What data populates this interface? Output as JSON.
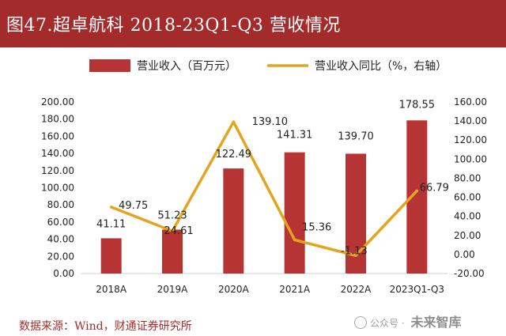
{
  "title": "图47.超卓航科 2018-23Q1-Q3 营收情况",
  "source": "数据来源：Wind，财通证券研究所",
  "watermark": {
    "prefix": "公众号 · ",
    "name": "未来智库"
  },
  "colors": {
    "bar": "#b73434",
    "line": "#e3a51f",
    "title_bg": "#a32b2b"
  },
  "chart_data": {
    "type": "bar",
    "categories": [
      "2018A",
      "2019A",
      "2020A",
      "2021A",
      "2022A",
      "2023Q1-Q3"
    ],
    "series": [
      {
        "name": "营业收入（百万元）",
        "type": "bar",
        "axis": "left",
        "values": [
          41.11,
          51.23,
          122.49,
          141.31,
          139.7,
          178.55
        ],
        "labels": [
          "41.11",
          "51.23",
          "122.49",
          "141.31",
          "139.70",
          "178.55"
        ]
      },
      {
        "name": "营业收入同比（%，右轴）",
        "type": "line",
        "axis": "right",
        "values": [
          49.75,
          24.61,
          139.1,
          15.36,
          -1.13,
          66.79
        ],
        "labels": [
          "49.75",
          "24.61",
          "139.10",
          "15.36",
          "-1.13",
          "66.79"
        ]
      }
    ],
    "y_left": {
      "range": [
        0,
        200
      ],
      "ticks": [
        "0.00",
        "20.00",
        "40.00",
        "60.00",
        "80.00",
        "100.00",
        "120.00",
        "140.00",
        "160.00",
        "180.00",
        "200.00"
      ]
    },
    "y_right": {
      "range": [
        -20,
        160
      ],
      "ticks": [
        "-20.00",
        "0.00",
        "20.00",
        "40.00",
        "60.00",
        "80.00",
        "100.00",
        "120.00",
        "140.00",
        "160.00"
      ]
    },
    "legend_position": "top",
    "grid": false
  }
}
